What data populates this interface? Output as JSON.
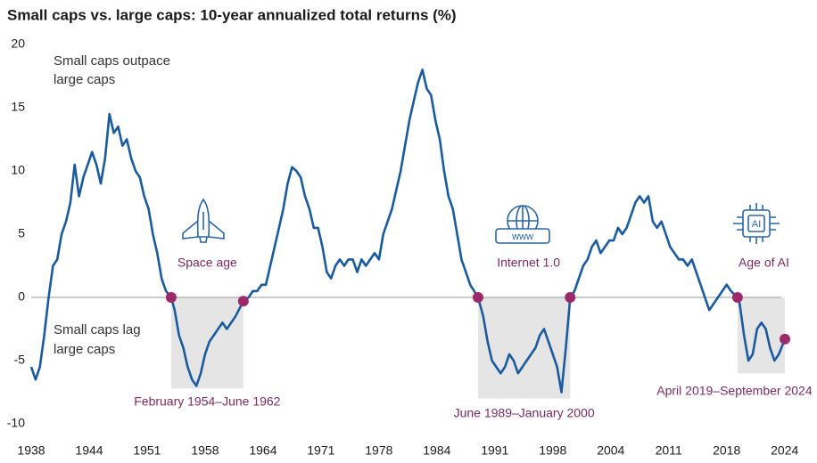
{
  "chart_data": {
    "type": "line",
    "title": "Small caps vs. large caps: 10-year annualized total returns (%)",
    "annotations": {
      "above": [
        "Small caps outpace",
        "large caps"
      ],
      "below": [
        "Small caps lag",
        "large caps"
      ]
    },
    "x": [
      1938.0,
      1938.5,
      1939.0,
      1939.5,
      1940.0,
      1940.5,
      1941.0,
      1941.5,
      1942.0,
      1942.5,
      1943.0,
      1943.5,
      1944.0,
      1944.5,
      1945.0,
      1945.5,
      1946.0,
      1946.5,
      1947.0,
      1947.5,
      1948.0,
      1948.5,
      1949.0,
      1949.5,
      1950.0,
      1950.5,
      1951.0,
      1951.5,
      1952.0,
      1952.5,
      1953.0,
      1953.5,
      1954.1,
      1954.5,
      1955.0,
      1955.5,
      1956.0,
      1956.5,
      1957.0,
      1957.5,
      1958.0,
      1958.5,
      1959.0,
      1959.5,
      1960.0,
      1960.5,
      1961.0,
      1961.5,
      1962.4,
      1963.0,
      1963.5,
      1964.0,
      1964.5,
      1965.0,
      1965.5,
      1966.0,
      1966.5,
      1967.0,
      1967.5,
      1968.0,
      1968.5,
      1969.0,
      1969.5,
      1970.0,
      1970.5,
      1971.0,
      1971.5,
      1972.0,
      1972.5,
      1973.0,
      1973.5,
      1974.0,
      1974.5,
      1975.0,
      1975.5,
      1976.0,
      1976.5,
      1977.0,
      1977.5,
      1978.0,
      1978.5,
      1979.0,
      1979.5,
      1980.0,
      1980.5,
      1981.0,
      1981.5,
      1982.0,
      1982.5,
      1983.0,
      1983.5,
      1984.0,
      1984.5,
      1985.0,
      1985.5,
      1986.0,
      1986.5,
      1987.0,
      1987.5,
      1988.0,
      1988.5,
      1989.4,
      1990.0,
      1990.5,
      1991.0,
      1991.5,
      1992.0,
      1992.5,
      1993.0,
      1993.5,
      1994.0,
      1994.5,
      1995.0,
      1995.5,
      1996.0,
      1996.5,
      1997.0,
      1997.5,
      1998.0,
      1998.5,
      1999.0,
      1999.5,
      2000.0,
      2000.5,
      2001.0,
      2001.5,
      2002.0,
      2002.5,
      2003.0,
      2003.5,
      2004.0,
      2004.5,
      2005.0,
      2005.5,
      2006.0,
      2006.5,
      2007.0,
      2007.5,
      2008.0,
      2008.5,
      2009.0,
      2009.5,
      2010.0,
      2010.5,
      2011.0,
      2011.5,
      2012.0,
      2012.5,
      2013.0,
      2013.5,
      2014.0,
      2014.5,
      2015.0,
      2015.5,
      2016.0,
      2016.5,
      2017.0,
      2017.5,
      2018.0,
      2018.5,
      2019.25,
      2019.5,
      2020.0,
      2020.5,
      2021.0,
      2021.5,
      2022.0,
      2022.5,
      2023.0,
      2023.5,
      2024.0,
      2024.7
    ],
    "series": [
      {
        "color": "#1a5a9e",
        "values": [
          -5.5,
          -6.5,
          -5.5,
          -3,
          0,
          2.5,
          3,
          5,
          6,
          7.5,
          10.5,
          8,
          9.5,
          10.5,
          11.5,
          10.5,
          9,
          11,
          14.5,
          13,
          13.5,
          12,
          12.5,
          11,
          10,
          9.5,
          8,
          7,
          5,
          3.5,
          1.5,
          0.5,
          0,
          -1,
          -3,
          -4,
          -5.5,
          -6.5,
          -7,
          -6,
          -4.5,
          -3.5,
          -3,
          -2.5,
          -2,
          -2.5,
          -2,
          -1.5,
          -0.3,
          0,
          0.5,
          0.5,
          1,
          1,
          2.5,
          4,
          5.5,
          7,
          9,
          10.3,
          10,
          9.5,
          8,
          7,
          5.5,
          5.5,
          4,
          2,
          1.5,
          2.5,
          3,
          2.5,
          3,
          3,
          2,
          3,
          2.5,
          3,
          3.5,
          3,
          5,
          6,
          7,
          8.5,
          10,
          12,
          14,
          15.5,
          17,
          18,
          16.5,
          16,
          14,
          12.5,
          10,
          8,
          7,
          5,
          3,
          2,
          1,
          0,
          -1.5,
          -3.5,
          -5,
          -5.5,
          -6,
          -5.5,
          -4.5,
          -5,
          -6,
          -5.5,
          -5,
          -4.5,
          -4,
          -3,
          -2.5,
          -3.5,
          -4.5,
          -5.5,
          -7.5,
          -4,
          0,
          0.5,
          1.5,
          2.5,
          3,
          4,
          4.5,
          3.5,
          4,
          4.5,
          4.5,
          5.5,
          5,
          5.5,
          6.5,
          7.5,
          8,
          7.5,
          8,
          6,
          5.5,
          6,
          5,
          4,
          3.5,
          3,
          3,
          2.5,
          3,
          2,
          1,
          0,
          -1,
          -0.5,
          0,
          0.5,
          1,
          0.5,
          0,
          -0.5,
          -3,
          -5,
          -4.5,
          -2.5,
          -2,
          -2.5,
          -4,
          -5,
          -4.5,
          -3.3
        ]
      }
    ],
    "periods": [
      {
        "name": "Space age",
        "label": "February 1954–June 1962",
        "start": 1954.1,
        "end": 1962.4,
        "start_value": 0,
        "end_value": -0.3,
        "shade_bottom": -7.2
      },
      {
        "name": "Internet 1.0",
        "label": "June 1989–January 2000",
        "start": 1989.4,
        "end": 2000.0,
        "start_value": 0,
        "end_value": 0,
        "shade_bottom": -8
      },
      {
        "name": "Age of AI",
        "label": "April 2019–September 2024",
        "start": 2019.25,
        "end": 2024.7,
        "start_value": 0,
        "end_value": -3.3,
        "shade_bottom": -6
      }
    ],
    "marker_color": "#9c2a6b",
    "shade_color": "#e5e5e5",
    "xlim": [
      1938,
      2024.7
    ],
    "xticks": [
      1938,
      {
        "value": 1944.67,
        "label": "1944"
      },
      {
        "value": 1951.33,
        "label": "1951"
      },
      1958,
      {
        "value": 1964.67,
        "label": "1964"
      },
      {
        "value": 1971.33,
        "label": "1971"
      },
      1978,
      {
        "value": 1984.67,
        "label": "1984"
      },
      {
        "value": 1991.33,
        "label": "1991"
      },
      1998,
      {
        "value": 2004.67,
        "label": "2004"
      },
      {
        "value": 2011.33,
        "label": "2011"
      },
      2018,
      {
        "value": 2024.67,
        "label": "2024"
      }
    ],
    "ylim": [
      -10,
      20
    ],
    "yticks": [
      -10,
      -5,
      0,
      5,
      10,
      15,
      20
    ],
    "grid": false
  }
}
